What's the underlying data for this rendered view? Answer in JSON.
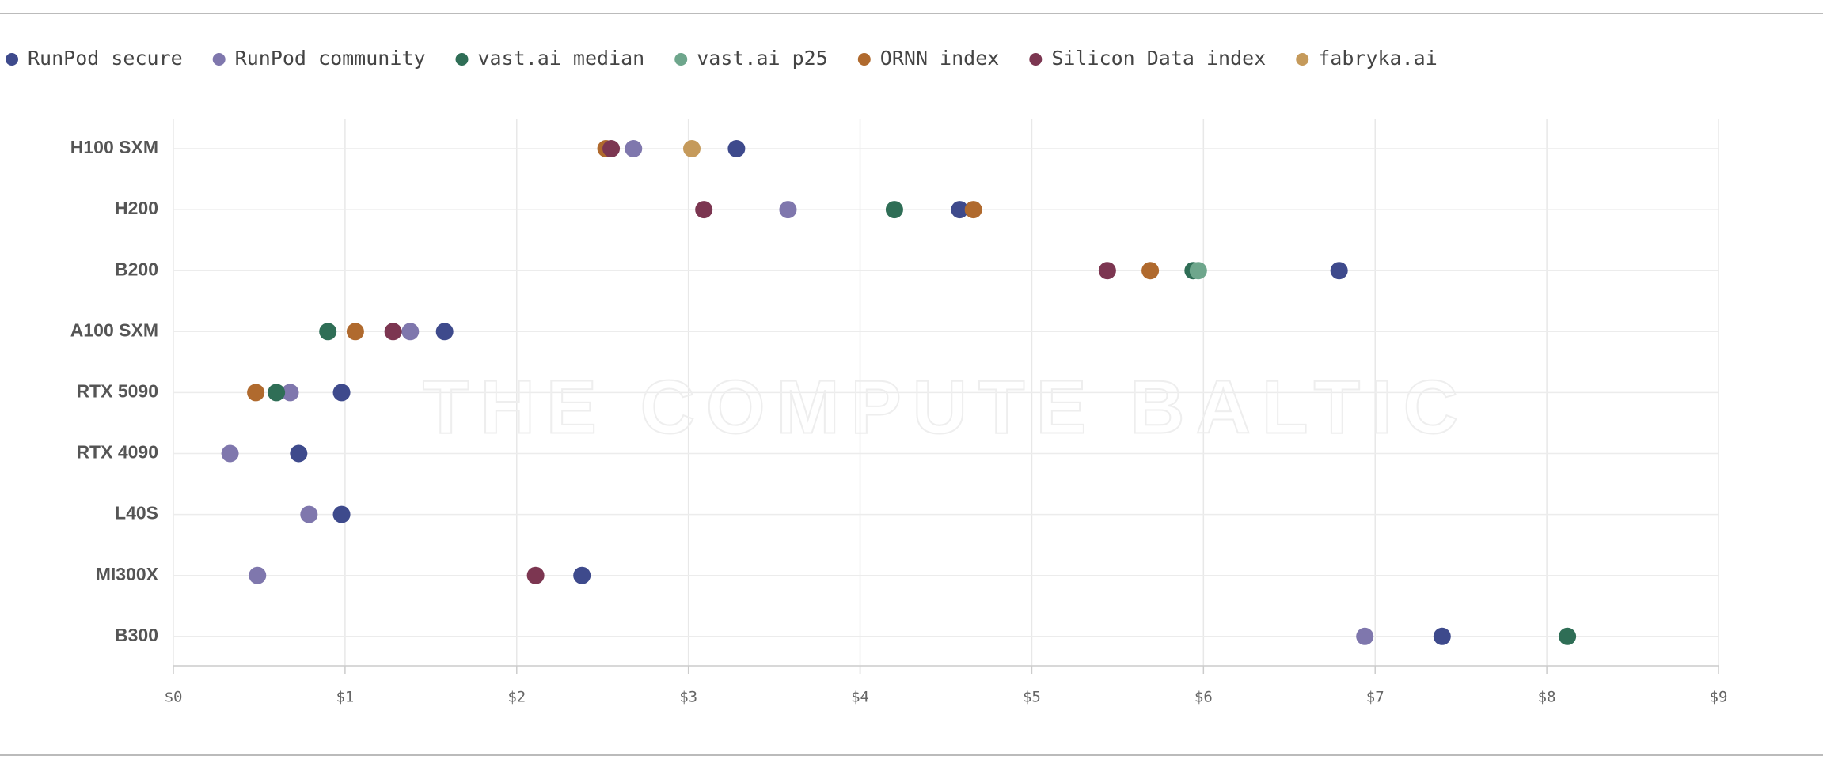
{
  "chart_data": {
    "type": "dot",
    "watermark": "THE COMPUTE BALTIC",
    "categories": [
      "H100 SXM",
      "H200",
      "B200",
      "A100 SXM",
      "RTX 5090",
      "RTX 4090",
      "L40S",
      "MI300X",
      "B300"
    ],
    "series": [
      {
        "name": "RunPod secure",
        "color": "#3e4a8c",
        "values": [
          3.28,
          4.58,
          6.79,
          1.58,
          0.98,
          0.73,
          0.98,
          2.38,
          7.39
        ]
      },
      {
        "name": "RunPod community",
        "color": "#7f77ad",
        "values": [
          2.68,
          3.58,
          null,
          1.38,
          0.68,
          0.33,
          0.79,
          0.49,
          6.94
        ]
      },
      {
        "name": "vast.ai median",
        "color": "#2f6e56",
        "values": [
          null,
          4.2,
          5.94,
          0.9,
          0.6,
          null,
          null,
          null,
          8.12
        ]
      },
      {
        "name": "vast.ai p25",
        "color": "#6ea68c",
        "values": [
          null,
          null,
          5.97,
          null,
          null,
          null,
          null,
          null,
          null
        ]
      },
      {
        "name": "ORNN index",
        "color": "#b06a2e",
        "values": [
          2.52,
          4.66,
          5.69,
          1.06,
          0.48,
          null,
          null,
          null,
          null
        ]
      },
      {
        "name": "Silicon Data index",
        "color": "#7c3651",
        "values": [
          2.55,
          3.09,
          5.44,
          1.28,
          null,
          null,
          null,
          2.11,
          null
        ]
      },
      {
        "name": "fabryka.ai",
        "color": "#c59a5b",
        "values": [
          3.02,
          null,
          null,
          null,
          null,
          null,
          null,
          null,
          null
        ]
      }
    ],
    "xlim": [
      0,
      9
    ],
    "xticks": [
      {
        "value": 0,
        "label": "$0"
      },
      {
        "value": 1,
        "label": "$1"
      },
      {
        "value": 2,
        "label": "$2"
      },
      {
        "value": 3,
        "label": "$3"
      },
      {
        "value": 4,
        "label": "$4"
      },
      {
        "value": 5,
        "label": "$5"
      },
      {
        "value": 6,
        "label": "$6"
      },
      {
        "value": 7,
        "label": "$7"
      },
      {
        "value": 8,
        "label": "$8"
      },
      {
        "value": 9,
        "label": "$9"
      }
    ],
    "grid": true
  }
}
